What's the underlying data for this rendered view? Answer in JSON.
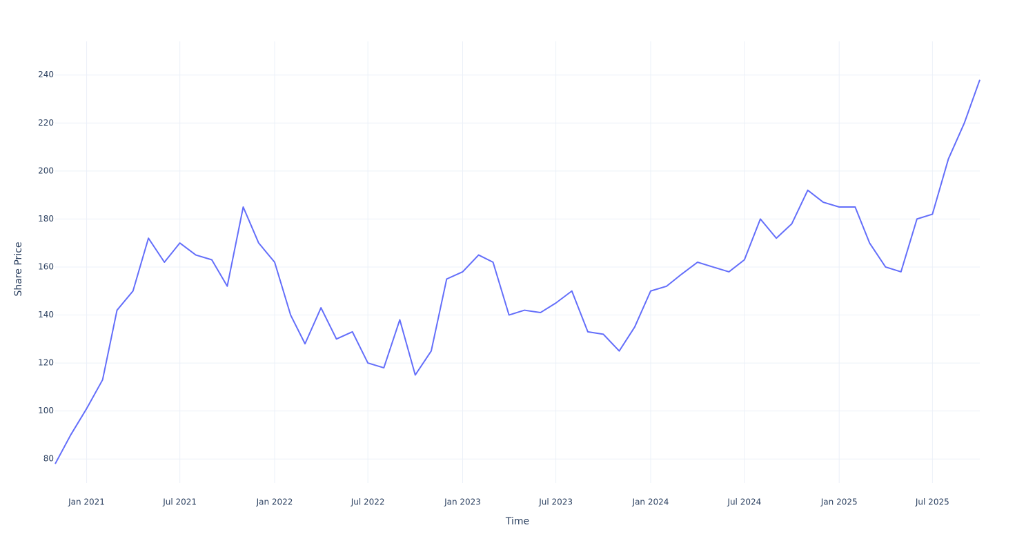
{
  "chart_data": {
    "type": "line",
    "x_label": "Time",
    "y_label": "Share Price",
    "x": [
      "2020-11",
      "2020-12",
      "2021-01",
      "2021-02",
      "2021-03",
      "2021-04",
      "2021-05",
      "2021-06",
      "2021-07",
      "2021-08",
      "2021-09",
      "2021-10",
      "2021-11",
      "2021-12",
      "2022-01",
      "2022-02",
      "2022-03",
      "2022-04",
      "2022-05",
      "2022-06",
      "2022-07",
      "2022-08",
      "2022-09",
      "2022-10",
      "2022-11",
      "2022-12",
      "2023-01",
      "2023-02",
      "2023-03",
      "2023-04",
      "2023-05",
      "2023-06",
      "2023-07",
      "2023-08",
      "2023-09",
      "2023-10",
      "2023-11",
      "2023-12",
      "2024-01",
      "2024-02",
      "2024-03",
      "2024-04",
      "2024-05",
      "2024-06",
      "2024-07",
      "2024-08",
      "2024-09",
      "2024-10",
      "2024-11",
      "2024-12",
      "2025-01",
      "2025-02",
      "2025-03",
      "2025-04",
      "2025-05",
      "2025-06",
      "2025-07",
      "2025-08",
      "2025-09",
      "2025-10"
    ],
    "series": [
      {
        "name": "Share Price",
        "color": "#636efa",
        "values": [
          78,
          90,
          101,
          113,
          142,
          150,
          172,
          162,
          170,
          165,
          163,
          152,
          185,
          170,
          162,
          140,
          128,
          143,
          130,
          133,
          120,
          118,
          138,
          115,
          125,
          155,
          158,
          165,
          162,
          140,
          142,
          141,
          145,
          150,
          133,
          132,
          125,
          135,
          150,
          152,
          157,
          162,
          160,
          158,
          163,
          180,
          172,
          178,
          192,
          187,
          185,
          185,
          170,
          160,
          158,
          180,
          182,
          205,
          220,
          238
        ]
      }
    ],
    "xlim": [
      "2020-11",
      "2025-10"
    ],
    "xticks": [
      {
        "value": "2021-01",
        "label": "Jan 2021"
      },
      {
        "value": "2021-07",
        "label": "Jul 2021"
      },
      {
        "value": "2022-01",
        "label": "Jan 2022"
      },
      {
        "value": "2022-07",
        "label": "Jul 2022"
      },
      {
        "value": "2023-01",
        "label": "Jan 2023"
      },
      {
        "value": "2023-07",
        "label": "Jul 2023"
      },
      {
        "value": "2024-01",
        "label": "Jan 2024"
      },
      {
        "value": "2024-07",
        "label": "Jul 2024"
      },
      {
        "value": "2025-01",
        "label": "Jan 2025"
      },
      {
        "value": "2025-07",
        "label": "Jul 2025"
      }
    ],
    "ylim": [
      70,
      254
    ],
    "yticks": [
      80,
      100,
      120,
      140,
      160,
      180,
      200,
      220,
      240
    ],
    "grid": true
  }
}
